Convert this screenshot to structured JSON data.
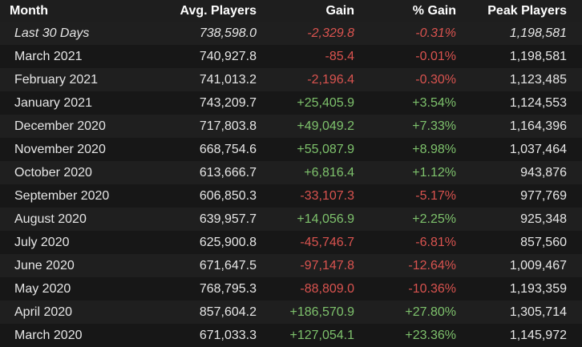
{
  "colors": {
    "positive": "#7ec26c",
    "negative": "#d9534f",
    "text": "#e6e6e6",
    "background": "#1b1b1b"
  },
  "table": {
    "headers": {
      "month": "Month",
      "avg_players": "Avg. Players",
      "gain": "Gain",
      "pct_gain": "% Gain",
      "peak_players": "Peak Players"
    },
    "rows": [
      {
        "month": "Last 30 Days",
        "avg": "738,598.0",
        "gain": "-2,329.8",
        "pct": "-0.31%",
        "peak": "1,198,581"
      },
      {
        "month": "March 2021",
        "avg": "740,927.8",
        "gain": "-85.4",
        "pct": "-0.01%",
        "peak": "1,198,581"
      },
      {
        "month": "February 2021",
        "avg": "741,013.2",
        "gain": "-2,196.4",
        "pct": "-0.30%",
        "peak": "1,123,485"
      },
      {
        "month": "January 2021",
        "avg": "743,209.7",
        "gain": "+25,405.9",
        "pct": "+3.54%",
        "peak": "1,124,553"
      },
      {
        "month": "December 2020",
        "avg": "717,803.8",
        "gain": "+49,049.2",
        "pct": "+7.33%",
        "peak": "1,164,396"
      },
      {
        "month": "November 2020",
        "avg": "668,754.6",
        "gain": "+55,087.9",
        "pct": "+8.98%",
        "peak": "1,037,464"
      },
      {
        "month": "October 2020",
        "avg": "613,666.7",
        "gain": "+6,816.4",
        "pct": "+1.12%",
        "peak": "943,876"
      },
      {
        "month": "September 2020",
        "avg": "606,850.3",
        "gain": "-33,107.3",
        "pct": "-5.17%",
        "peak": "977,769"
      },
      {
        "month": "August 2020",
        "avg": "639,957.7",
        "gain": "+14,056.9",
        "pct": "+2.25%",
        "peak": "925,348"
      },
      {
        "month": "July 2020",
        "avg": "625,900.8",
        "gain": "-45,746.7",
        "pct": "-6.81%",
        "peak": "857,560"
      },
      {
        "month": "June 2020",
        "avg": "671,647.5",
        "gain": "-97,147.8",
        "pct": "-12.64%",
        "peak": "1,009,467"
      },
      {
        "month": "May 2020",
        "avg": "768,795.3",
        "gain": "-88,809.0",
        "pct": "-10.36%",
        "peak": "1,193,359"
      },
      {
        "month": "April 2020",
        "avg": "857,604.2",
        "gain": "+186,570.9",
        "pct": "+27.80%",
        "peak": "1,305,714"
      },
      {
        "month": "March 2020",
        "avg": "671,033.3",
        "gain": "+127,054.1",
        "pct": "+23.36%",
        "peak": "1,145,972"
      }
    ]
  }
}
